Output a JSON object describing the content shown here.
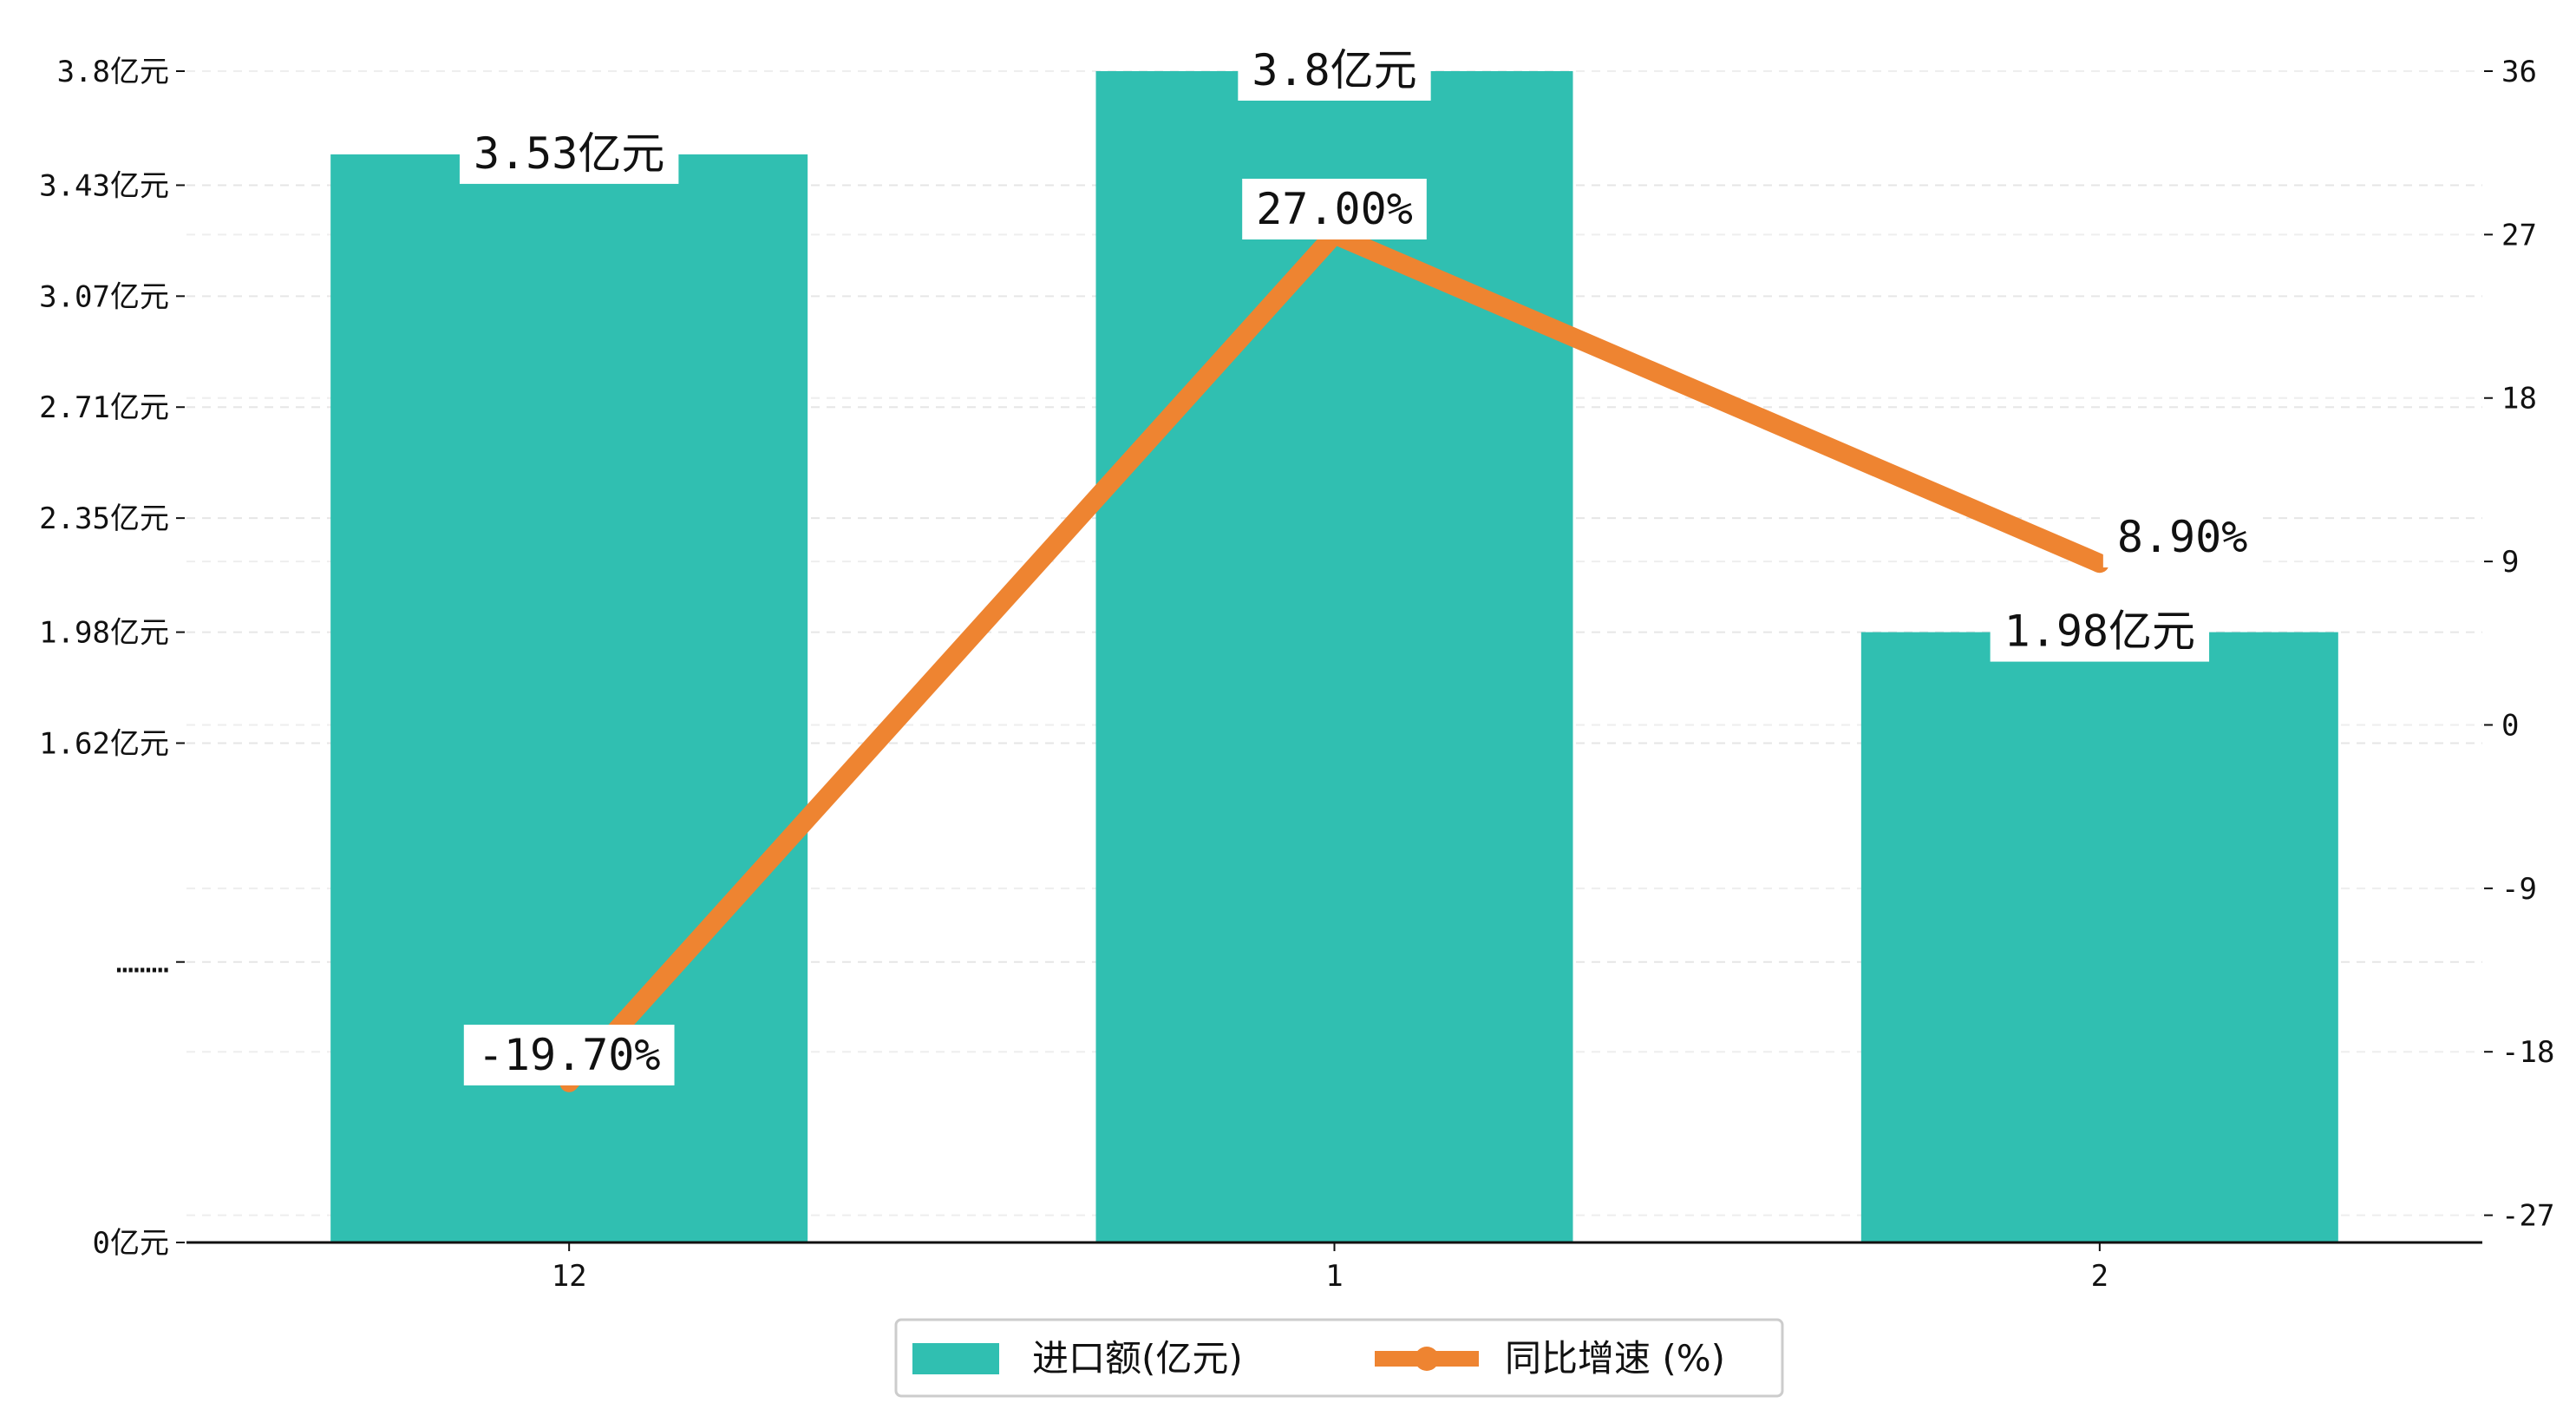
{
  "chart_data": {
    "type": "bar+line",
    "categories": [
      "12",
      "1",
      "2"
    ],
    "bar_series": {
      "name": "进口额(亿元)",
      "values": [
        3.53,
        3.8,
        1.98
      ],
      "labels": [
        "3.53亿元",
        "3.8亿元",
        "1.98亿元"
      ],
      "color": "#30BFB1"
    },
    "line_series": {
      "name": "同比增速 (%)",
      "values": [
        -19.7,
        27.0,
        8.9
      ],
      "labels": [
        "-19.70%",
        "27.00%",
        "8.90%"
      ],
      "color": "#EE8431"
    },
    "left_axis": {
      "ylim": [
        0,
        3.8
      ],
      "ticks": [
        0,
        0.91,
        1.62,
        1.98,
        2.35,
        2.71,
        3.07,
        3.43,
        3.8
      ],
      "tick_labels": [
        "0亿元",
        "………",
        "1.62亿元",
        "1.98亿元",
        "2.35亿元",
        "2.71亿元",
        "3.07亿元",
        "3.43亿元",
        "3.8亿元"
      ]
    },
    "right_axis": {
      "ylim": [
        -28.5,
        36
      ],
      "ticks": [
        -27,
        -18,
        -9,
        0,
        9,
        18,
        27,
        36
      ],
      "tick_labels": [
        "-27",
        "-18",
        "-9",
        "0",
        "9",
        "18",
        "27",
        "36"
      ]
    },
    "grid": true,
    "legend_position": "bottom-center"
  }
}
